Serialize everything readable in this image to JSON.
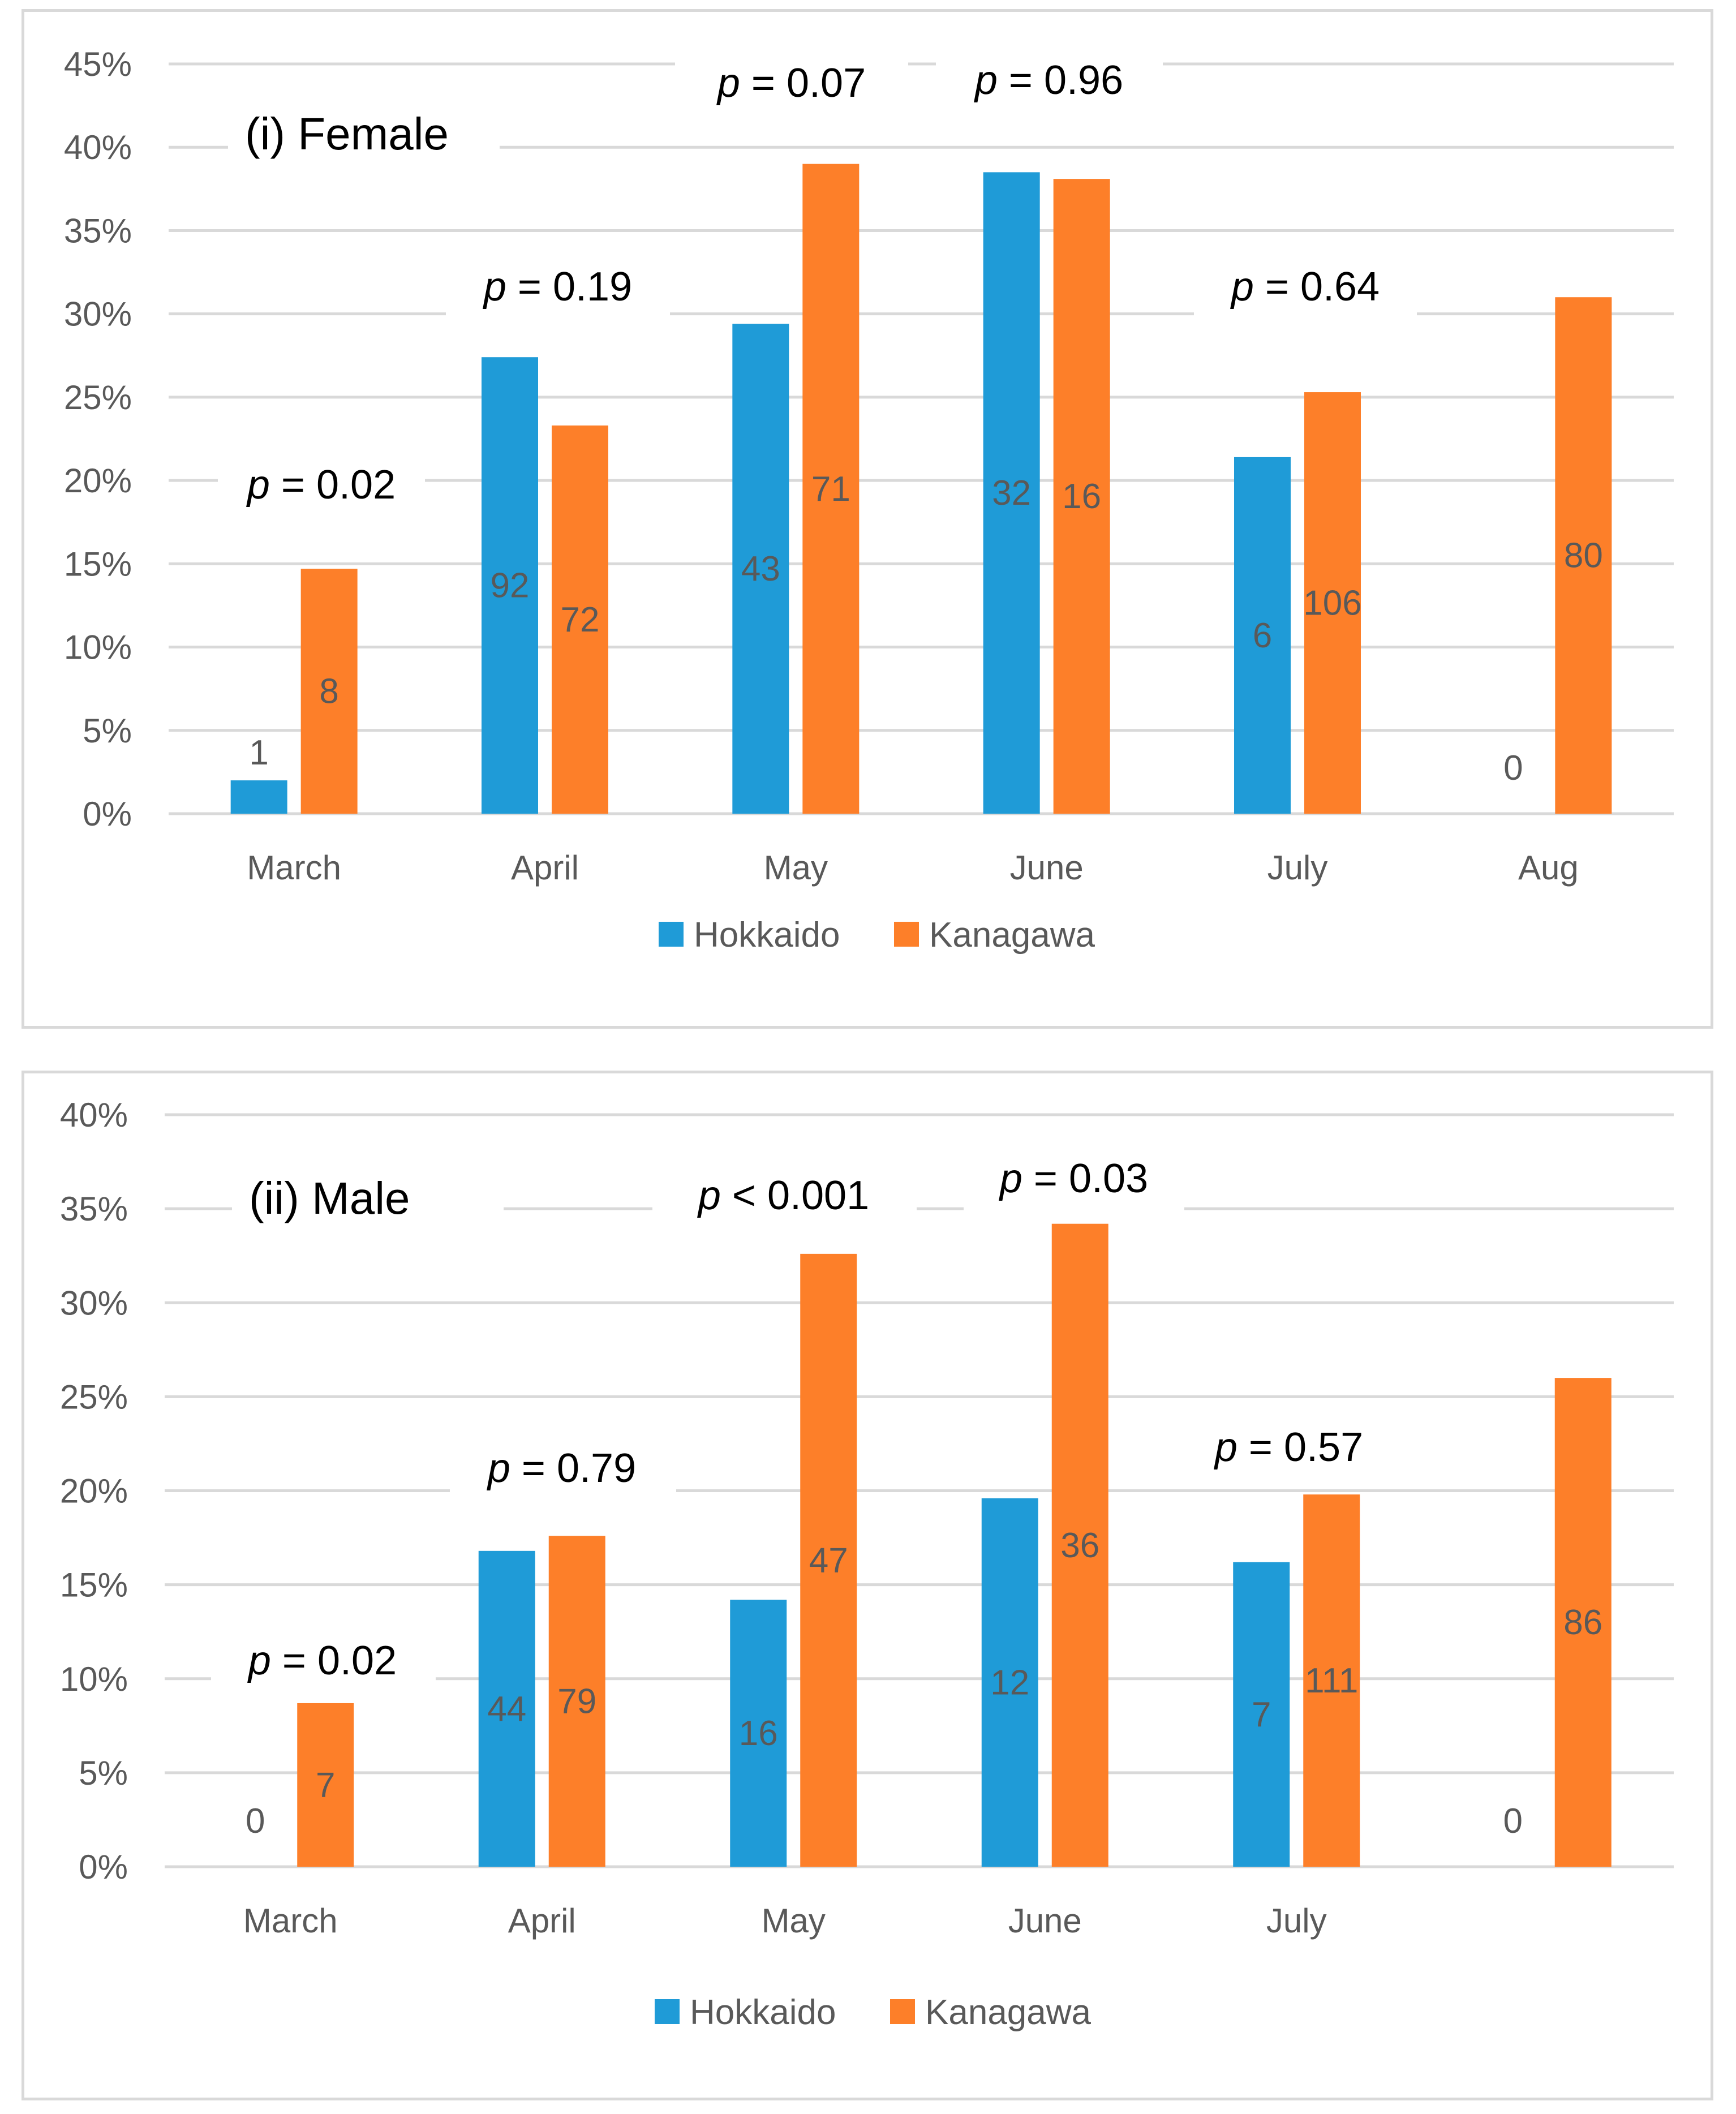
{
  "chart_data": [
    {
      "type": "bar",
      "title": "(i) Female",
      "categories": [
        "March",
        "April",
        "May",
        "June",
        "July",
        "Aug"
      ],
      "y_tick_labels": [
        "0%",
        "5%",
        "10%",
        "15%",
        "20%",
        "25%",
        "30%",
        "35%",
        "40%",
        "45%"
      ],
      "ylim": [
        0,
        45
      ],
      "ylabel": "",
      "xlabel": "",
      "legend_position": "bottom",
      "series": [
        {
          "name": "Hokkaido",
          "color": "#1f9bd7",
          "values": [
            2.0,
            27.4,
            29.4,
            38.5,
            21.4,
            0
          ],
          "labels": [
            "1",
            "92",
            "43",
            "32",
            "6",
            "0"
          ]
        },
        {
          "name": "Kanagawa",
          "color": "#fd7f29",
          "values": [
            14.7,
            23.3,
            39.0,
            38.1,
            25.3,
            31.0
          ],
          "labels": [
            "8",
            "72",
            "71",
            "16",
            "106",
            "80"
          ]
        }
      ],
      "p_values": [
        {
          "category": "March",
          "symbol": "p",
          "text": " = 0.02"
        },
        {
          "category": "April",
          "symbol": "p",
          "text": " = 0.19"
        },
        {
          "category": "May",
          "symbol": "p",
          "text": " = 0.07"
        },
        {
          "category": "June",
          "symbol": "p",
          "text": " = 0.96"
        },
        {
          "category": "July",
          "symbol": "p",
          "text": " = 0.64"
        }
      ]
    },
    {
      "type": "bar",
      "title": "(ii) Male",
      "categories": [
        "March",
        "April",
        "May",
        "June",
        "July",
        ""
      ],
      "y_tick_labels": [
        "0%",
        "5%",
        "10%",
        "15%",
        "20%",
        "25%",
        "30%",
        "35%",
        "40%"
      ],
      "ylim": [
        0,
        40
      ],
      "ylabel": "",
      "xlabel": "",
      "legend_position": "bottom",
      "series": [
        {
          "name": "Hokkaido",
          "color": "#1f9bd7",
          "values": [
            0,
            16.8,
            14.2,
            19.6,
            16.2,
            0
          ],
          "labels": [
            "0",
            "44",
            "16",
            "12",
            "7",
            "0"
          ]
        },
        {
          "name": "Kanagawa",
          "color": "#fd7f29",
          "values": [
            8.7,
            17.6,
            32.6,
            34.2,
            19.8,
            26.0
          ],
          "labels": [
            "7",
            "79",
            "47",
            "36",
            "111",
            "86"
          ]
        }
      ],
      "p_values": [
        {
          "category": "March",
          "symbol": "p",
          "text": " = 0.02"
        },
        {
          "category": "April",
          "symbol": "p",
          "text": " = 0.79"
        },
        {
          "category": "May",
          "symbol": "p",
          "text": " < 0.001"
        },
        {
          "category": "June",
          "symbol": "p",
          "text": " = 0.03"
        },
        {
          "category": "July",
          "symbol": "p",
          "text": " = 0.57"
        }
      ]
    }
  ]
}
